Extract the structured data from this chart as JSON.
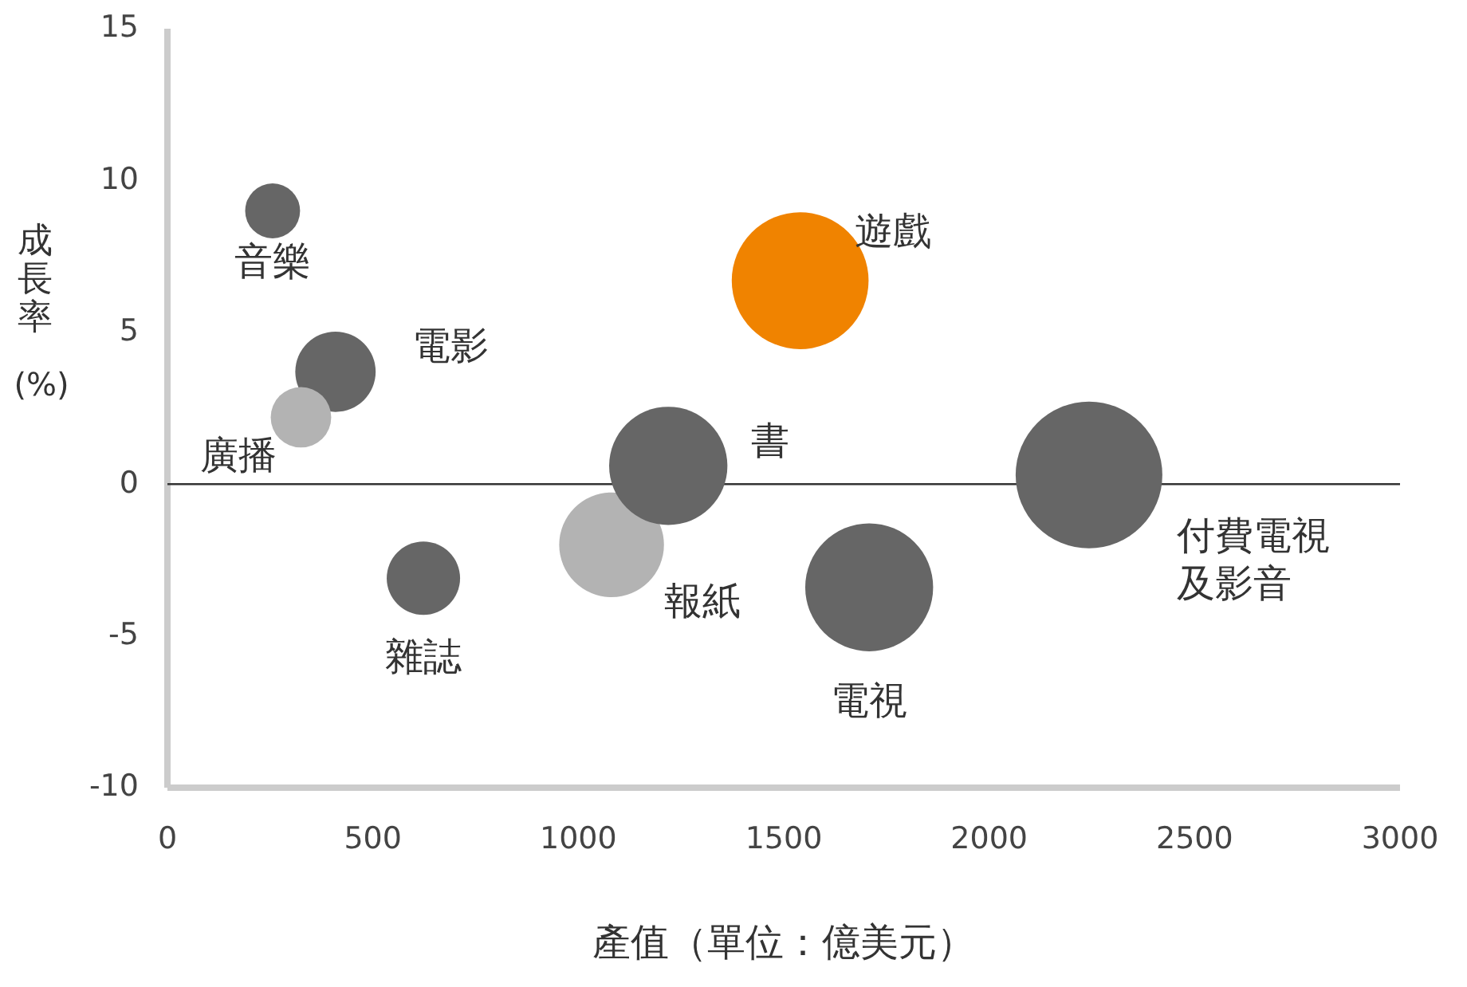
{
  "chart_data": {
    "type": "bubble",
    "xlabel": "產值（單位：億美元）",
    "ylabel": "成長率(%)",
    "xlim": [
      0,
      3000
    ],
    "xticks": [
      0,
      500,
      1000,
      1500,
      2000,
      2500,
      3000
    ],
    "ylim": [
      -10,
      15
    ],
    "yticks": [
      -10,
      -5,
      0,
      5,
      10,
      15
    ],
    "grid": false,
    "ref_lines": [
      {
        "axis": "y",
        "value": 0,
        "color": "#333333"
      }
    ],
    "series": [
      {
        "name": "音樂",
        "color": "#666666",
        "x": [
          256
        ],
        "values": [
          9.0
        ],
        "sizes": [
          0.14
        ]
      },
      {
        "name": "電影",
        "color": "#666666",
        "x": [
          409
        ],
        "values": [
          3.7
        ],
        "sizes": [
          0.3
        ]
      },
      {
        "name": "廣播",
        "color": "#b3b3b3",
        "x": [
          325
        ],
        "values": [
          2.2
        ],
        "sizes": [
          0.17
        ]
      },
      {
        "name": "雜誌",
        "color": "#666666",
        "x": [
          623
        ],
        "values": [
          -3.1
        ],
        "sizes": [
          0.25
        ]
      },
      {
        "name": "報紙",
        "color": "#b3b3b3",
        "x": [
          1081
        ],
        "values": [
          -2.0
        ],
        "sizes": [
          0.51
        ]
      },
      {
        "name": "書",
        "color": "#666666",
        "x": [
          1219
        ],
        "values": [
          0.6
        ],
        "sizes": [
          0.65
        ]
      },
      {
        "name": "遊戲",
        "color": "#f08300",
        "x": [
          1540
        ],
        "values": [
          6.7
        ],
        "sizes": [
          0.87
        ]
      },
      {
        "name": "電視",
        "color": "#666666",
        "x": [
          1708
        ],
        "values": [
          -3.4
        ],
        "sizes": [
          0.76
        ]
      },
      {
        "name": "付費電視及影音",
        "color": "#666666",
        "x": [
          2243
        ],
        "values": [
          0.3
        ],
        "sizes": [
          1
        ]
      }
    ]
  }
}
